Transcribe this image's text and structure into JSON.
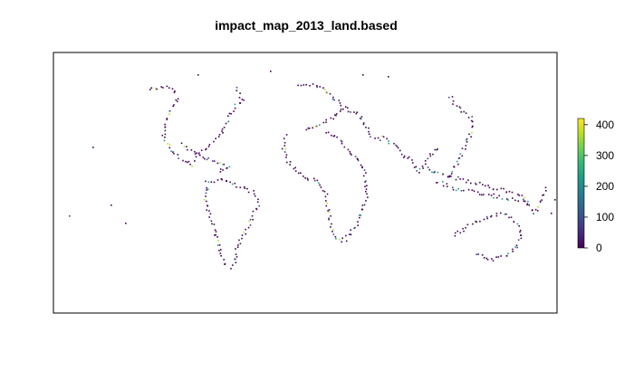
{
  "title": "impact_map_2013_land.based",
  "legend": {
    "ticks": [
      "400",
      "300",
      "200",
      "100",
      "0"
    ],
    "tick_values": [
      400,
      300,
      200,
      100,
      0
    ],
    "range": [
      0,
      420
    ],
    "palette": [
      "#440154",
      "#482777",
      "#3e4a89",
      "#31688e",
      "#26828e",
      "#1f9e89",
      "#35b779",
      "#6ece58",
      "#b5de2b",
      "#fde725"
    ]
  },
  "colors": {
    "low": "#440154",
    "mid": "#21908d",
    "high": "#fde725",
    "frame": "#000000"
  }
}
